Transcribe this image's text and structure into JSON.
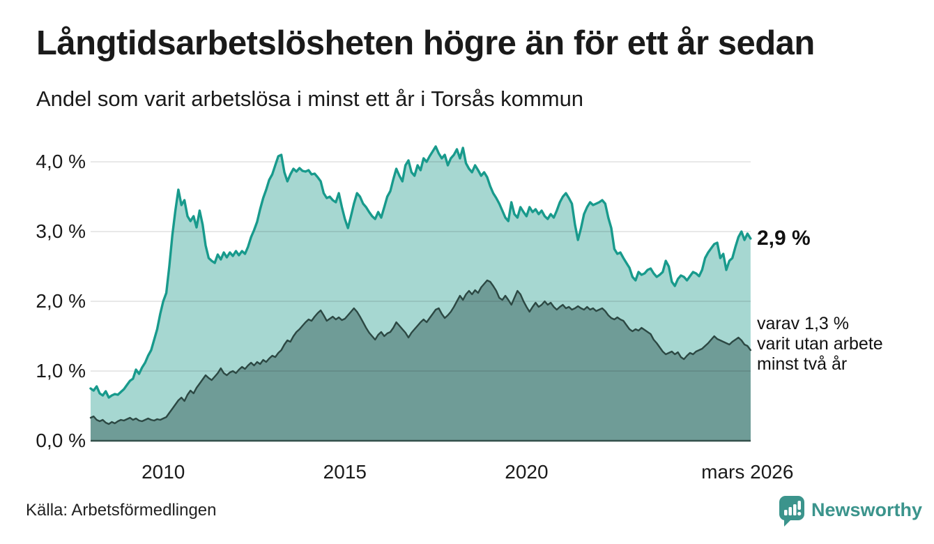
{
  "header": {
    "title": "Långtidsarbetslösheten högre än för ett år sedan",
    "subtitle": "Andel som varit arbetslösa i minst ett år i Torsås kommun"
  },
  "annotations": {
    "latest_total": "2,9 %",
    "two_year_lines": [
      "varav 1,3 %",
      "varit utan arbete",
      "minst två år"
    ]
  },
  "footer": {
    "source": "Källa: Arbetsförmedlingen",
    "brand": "Newsworthy"
  },
  "colors": {
    "total_line": "#189a8c",
    "total_fill": "#a6d7d1",
    "two_year_line": "#2c4843",
    "two_year_fill": "#6f9c97",
    "gridline": "rgba(0,0,0,0.09)",
    "baseline": "#33504b",
    "brand_teal": "#3b948c"
  },
  "chart_data": {
    "type": "area",
    "title": "Långtidsarbetslösheten högre än för ett år sedan",
    "subtitle": "Andel som varit arbetslösa i minst ett år i Torsås kommun",
    "unit": "%",
    "grid": true,
    "x_axis": {
      "range": [
        2008.0,
        2026.17
      ],
      "ticks": [
        {
          "x": 2010.0,
          "label": "2010"
        },
        {
          "x": 2015.0,
          "label": "2015"
        },
        {
          "x": 2020.0,
          "label": "2020"
        },
        {
          "x": 2026.08,
          "label": "mars 2026"
        }
      ]
    },
    "y_axis": {
      "range": [
        0,
        4.35
      ],
      "ticks": [
        {
          "v": 0.0,
          "label": "0,0 %"
        },
        {
          "v": 1.0,
          "label": "1,0 %"
        },
        {
          "v": 2.0,
          "label": "2,0 %"
        },
        {
          "v": 3.0,
          "label": "3,0 %"
        },
        {
          "v": 4.0,
          "label": "4,0 %"
        }
      ]
    },
    "series": [
      {
        "name": "Andel arbetslösa minst ett år",
        "end_label": "2,9 %",
        "end_value": 2.9,
        "start": 2008.0,
        "step_years": 0.08333,
        "values": [
          0.75,
          0.72,
          0.78,
          0.68,
          0.65,
          0.71,
          0.62,
          0.65,
          0.67,
          0.66,
          0.7,
          0.74,
          0.8,
          0.86,
          0.89,
          1.02,
          0.96,
          1.05,
          1.12,
          1.22,
          1.3,
          1.45,
          1.6,
          1.82,
          2.0,
          2.12,
          2.5,
          2.95,
          3.3,
          3.6,
          3.38,
          3.45,
          3.22,
          3.15,
          3.22,
          3.06,
          3.3,
          3.1,
          2.8,
          2.62,
          2.58,
          2.55,
          2.67,
          2.6,
          2.7,
          2.63,
          2.7,
          2.65,
          2.72,
          2.66,
          2.72,
          2.68,
          2.78,
          2.92,
          3.02,
          3.14,
          3.32,
          3.48,
          3.6,
          3.74,
          3.82,
          3.95,
          4.08,
          4.1,
          3.85,
          3.72,
          3.82,
          3.9,
          3.86,
          3.91,
          3.87,
          3.86,
          3.88,
          3.82,
          3.83,
          3.78,
          3.72,
          3.55,
          3.48,
          3.5,
          3.45,
          3.42,
          3.55,
          3.35,
          3.18,
          3.05,
          3.22,
          3.4,
          3.55,
          3.5,
          3.4,
          3.35,
          3.28,
          3.22,
          3.18,
          3.28,
          3.2,
          3.35,
          3.5,
          3.58,
          3.75,
          3.9,
          3.8,
          3.72,
          3.95,
          4.02,
          3.85,
          3.8,
          3.95,
          3.88,
          4.05,
          4.0,
          4.08,
          4.15,
          4.22,
          4.12,
          4.05,
          4.1,
          3.95,
          4.05,
          4.1,
          4.18,
          4.05,
          4.2,
          3.98,
          3.9,
          3.85,
          3.95,
          3.88,
          3.8,
          3.85,
          3.78,
          3.65,
          3.55,
          3.48,
          3.4,
          3.3,
          3.2,
          3.15,
          3.42,
          3.25,
          3.2,
          3.35,
          3.28,
          3.22,
          3.35,
          3.28,
          3.32,
          3.25,
          3.3,
          3.22,
          3.18,
          3.25,
          3.2,
          3.3,
          3.42,
          3.5,
          3.55,
          3.48,
          3.4,
          3.1,
          2.88,
          3.05,
          3.25,
          3.35,
          3.42,
          3.38,
          3.4,
          3.42,
          3.45,
          3.4,
          3.2,
          3.05,
          2.75,
          2.68,
          2.7,
          2.62,
          2.55,
          2.48,
          2.35,
          2.3,
          2.42,
          2.38,
          2.4,
          2.45,
          2.47,
          2.4,
          2.35,
          2.38,
          2.42,
          2.58,
          2.5,
          2.28,
          2.22,
          2.32,
          2.37,
          2.35,
          2.3,
          2.36,
          2.42,
          2.4,
          2.36,
          2.45,
          2.62,
          2.7,
          2.76,
          2.82,
          2.84,
          2.62,
          2.68,
          2.45,
          2.58,
          2.62,
          2.78,
          2.92,
          3.0,
          2.88,
          2.97,
          2.9
        ]
      },
      {
        "name": "varav utan arbete minst två år",
        "end_label": "varav 1,3 % varit utan arbete minst två år",
        "end_value": 1.3,
        "start": 2008.0,
        "step_years": 0.08333,
        "values": [
          0.33,
          0.35,
          0.3,
          0.28,
          0.3,
          0.26,
          0.24,
          0.27,
          0.25,
          0.28,
          0.3,
          0.29,
          0.31,
          0.33,
          0.3,
          0.32,
          0.29,
          0.28,
          0.3,
          0.32,
          0.3,
          0.29,
          0.31,
          0.3,
          0.32,
          0.34,
          0.4,
          0.46,
          0.52,
          0.58,
          0.62,
          0.57,
          0.66,
          0.72,
          0.68,
          0.76,
          0.82,
          0.88,
          0.94,
          0.9,
          0.87,
          0.92,
          0.97,
          1.04,
          0.97,
          0.94,
          0.98,
          1.0,
          0.97,
          1.02,
          1.06,
          1.03,
          1.08,
          1.12,
          1.08,
          1.13,
          1.1,
          1.16,
          1.13,
          1.18,
          1.22,
          1.2,
          1.26,
          1.3,
          1.38,
          1.44,
          1.42,
          1.5,
          1.56,
          1.6,
          1.65,
          1.7,
          1.74,
          1.72,
          1.78,
          1.83,
          1.87,
          1.8,
          1.72,
          1.75,
          1.78,
          1.74,
          1.77,
          1.73,
          1.75,
          1.8,
          1.85,
          1.9,
          1.85,
          1.78,
          1.7,
          1.62,
          1.55,
          1.5,
          1.45,
          1.52,
          1.56,
          1.5,
          1.54,
          1.56,
          1.62,
          1.7,
          1.65,
          1.6,
          1.55,
          1.48,
          1.55,
          1.6,
          1.65,
          1.7,
          1.74,
          1.7,
          1.76,
          1.82,
          1.88,
          1.9,
          1.82,
          1.76,
          1.8,
          1.85,
          1.92,
          2.0,
          2.08,
          2.02,
          2.1,
          2.15,
          2.1,
          2.16,
          2.12,
          2.2,
          2.25,
          2.3,
          2.28,
          2.22,
          2.15,
          2.05,
          2.02,
          2.08,
          2.02,
          1.95,
          2.05,
          2.15,
          2.1,
          2.0,
          1.92,
          1.85,
          1.92,
          1.98,
          1.92,
          1.95,
          2.0,
          1.95,
          1.98,
          1.92,
          1.88,
          1.92,
          1.95,
          1.9,
          1.92,
          1.88,
          1.9,
          1.93,
          1.9,
          1.88,
          1.92,
          1.88,
          1.9,
          1.86,
          1.88,
          1.9,
          1.86,
          1.8,
          1.76,
          1.74,
          1.77,
          1.74,
          1.72,
          1.66,
          1.6,
          1.57,
          1.6,
          1.58,
          1.62,
          1.59,
          1.56,
          1.53,
          1.45,
          1.4,
          1.34,
          1.28,
          1.24,
          1.26,
          1.28,
          1.24,
          1.27,
          1.2,
          1.17,
          1.22,
          1.26,
          1.24,
          1.28,
          1.3,
          1.32,
          1.36,
          1.4,
          1.45,
          1.5,
          1.46,
          1.44,
          1.42,
          1.4,
          1.38,
          1.42,
          1.45,
          1.48,
          1.44,
          1.38,
          1.36,
          1.3
        ]
      }
    ]
  }
}
